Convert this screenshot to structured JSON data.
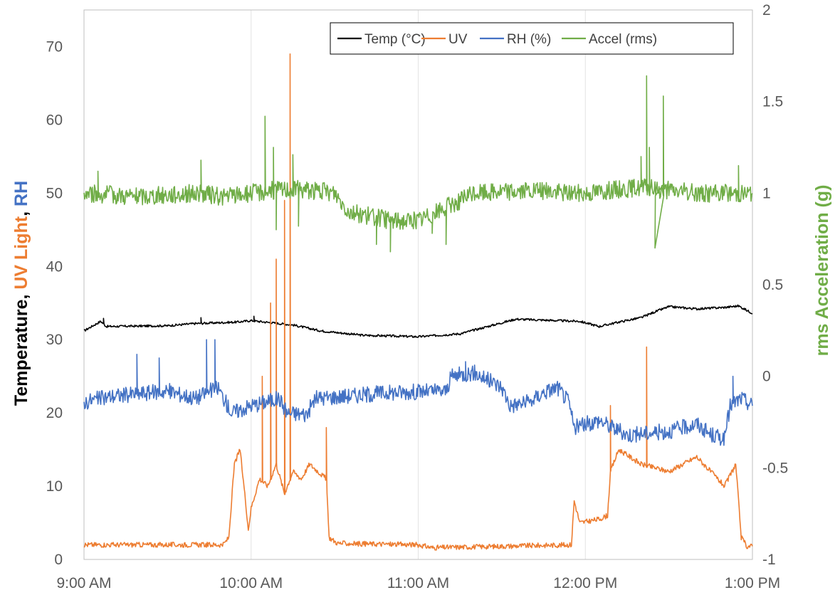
{
  "chart_data": {
    "type": "line",
    "title": "",
    "xlabel": "",
    "xlim": [
      "9:00 AM",
      "1:00 PM"
    ],
    "x_ticks": [
      "9:00 AM",
      "10:00 AM",
      "11:00 AM",
      "12:00 PM",
      "1:00 PM"
    ],
    "ylabel_left_parts": [
      {
        "text": "Temperature",
        "color": "#000000"
      },
      {
        "text": ", ",
        "color": "#000000"
      },
      {
        "text": "UV Light",
        "color": "#ED7D31"
      },
      {
        "text": ", ",
        "color": "#000000"
      },
      {
        "text": "RH",
        "color": "#4472C4"
      }
    ],
    "ylim_left": [
      0,
      75
    ],
    "y_ticks_left": [
      "0",
      "10",
      "20",
      "30",
      "40",
      "50",
      "60",
      "70"
    ],
    "ylabel_right": "rms Acceleration (g)",
    "ylabel_right_color": "#70AD47",
    "ylim_right": [
      -1,
      2
    ],
    "y_ticks_right": [
      "-1",
      "-0.5",
      "0",
      "0.5",
      "1",
      "1.5",
      "2"
    ],
    "grid": "vertical",
    "legend_position": "top-right",
    "series": [
      {
        "name": "Temp (°C)",
        "color": "#000000",
        "axis": "left",
        "noise": 0.15,
        "points": [
          [
            "9:00",
            31.2
          ],
          [
            "9:06",
            32.5
          ],
          [
            "9:08",
            31.8
          ],
          [
            "9:30",
            31.9
          ],
          [
            "9:40",
            32.2
          ],
          [
            "9:55",
            32.4
          ],
          [
            "10:00",
            32.6
          ],
          [
            "10:05",
            32.4
          ],
          [
            "10:15",
            32.0
          ],
          [
            "10:25",
            31.2
          ],
          [
            "10:40",
            30.6
          ],
          [
            "11:00",
            30.4
          ],
          [
            "11:15",
            30.8
          ],
          [
            "11:25",
            31.8
          ],
          [
            "11:35",
            32.8
          ],
          [
            "11:50",
            32.6
          ],
          [
            "11:58",
            32.5
          ],
          [
            "12:05",
            31.8
          ],
          [
            "12:12",
            32.4
          ],
          [
            "12:20",
            33.0
          ],
          [
            "12:25",
            33.8
          ],
          [
            "12:30",
            34.5
          ],
          [
            "12:40",
            34.2
          ],
          [
            "12:50",
            34.4
          ],
          [
            "12:55",
            34.6
          ],
          [
            "13:00",
            33.6
          ]
        ],
        "spikes": [
          [
            "9:07",
            32.9
          ],
          [
            "9:42",
            33.0
          ],
          [
            "10:01",
            33.2
          ]
        ]
      },
      {
        "name": "UV",
        "color": "#ED7D31",
        "axis": "left",
        "noise": 0.35,
        "points": [
          [
            "9:00",
            2.0
          ],
          [
            "9:50",
            2.0
          ],
          [
            "9:52",
            3.0
          ],
          [
            "9:54",
            13.0
          ],
          [
            "9:56",
            15.0
          ],
          [
            "9:58",
            8.0
          ],
          [
            "9:59",
            4.0
          ],
          [
            "10:00",
            7.0
          ],
          [
            "10:03",
            11.0
          ],
          [
            "10:06",
            10.0
          ],
          [
            "10:09",
            13.0
          ],
          [
            "10:12",
            9.0
          ],
          [
            "10:15",
            12.0
          ],
          [
            "10:18",
            11.0
          ],
          [
            "10:21",
            13.0
          ],
          [
            "10:24",
            12.0
          ],
          [
            "10:27",
            11.0
          ],
          [
            "10:28",
            3.0
          ],
          [
            "10:31",
            2.2
          ],
          [
            "11:00",
            2.0
          ],
          [
            "11:05",
            1.6
          ],
          [
            "11:30",
            1.8
          ],
          [
            "11:55",
            2.0
          ],
          [
            "11:56",
            8.0
          ],
          [
            "11:58",
            5.0
          ],
          [
            "12:05",
            5.5
          ],
          [
            "12:08",
            6.0
          ],
          [
            "12:09",
            12.0
          ],
          [
            "12:12",
            15.0
          ],
          [
            "12:20",
            13.0
          ],
          [
            "12:30",
            12.0
          ],
          [
            "12:40",
            14.0
          ],
          [
            "12:45",
            12.0
          ],
          [
            "12:50",
            10.0
          ],
          [
            "12:54",
            13.0
          ],
          [
            "12:56",
            3.0
          ],
          [
            "12:58",
            1.8
          ],
          [
            "13:00",
            1.8
          ]
        ],
        "spikes": [
          [
            "10:04",
            25.0
          ],
          [
            "10:07",
            35.0
          ],
          [
            "10:09",
            41.0
          ],
          [
            "10:12",
            49.0
          ],
          [
            "10:14",
            69.0
          ],
          [
            "10:27",
            18.0
          ],
          [
            "12:09",
            21.0
          ],
          [
            "12:22",
            29.0
          ]
        ]
      },
      {
        "name": "RH (%)",
        "color": "#4472C4",
        "axis": "left",
        "noise": 1.1,
        "points": [
          [
            "9:00",
            21.5
          ],
          [
            "9:10",
            22.3
          ],
          [
            "9:30",
            23.0
          ],
          [
            "9:40",
            22.0
          ],
          [
            "9:48",
            23.5
          ],
          [
            "9:53",
            20.0
          ],
          [
            "10:00",
            21.0
          ],
          [
            "10:10",
            22.0
          ],
          [
            "10:13",
            20.0
          ],
          [
            "10:20",
            19.8
          ],
          [
            "10:23",
            22.0
          ],
          [
            "10:30",
            22.2
          ],
          [
            "10:50",
            22.8
          ],
          [
            "11:10",
            23.0
          ],
          [
            "11:12",
            25.0
          ],
          [
            "11:20",
            25.5
          ],
          [
            "11:30",
            23.5
          ],
          [
            "11:33",
            21.0
          ],
          [
            "11:40",
            21.5
          ],
          [
            "11:45",
            22.8
          ],
          [
            "11:50",
            23.5
          ],
          [
            "11:54",
            21.5
          ],
          [
            "11:56",
            18.0
          ],
          [
            "12:05",
            19.0
          ],
          [
            "12:15",
            17.0
          ],
          [
            "12:30",
            17.5
          ],
          [
            "12:40",
            18.5
          ],
          [
            "12:45",
            17.0
          ],
          [
            "12:50",
            16.5
          ],
          [
            "12:52",
            21.0
          ],
          [
            "12:56",
            22.0
          ],
          [
            "13:00",
            21.0
          ]
        ],
        "spikes": [
          [
            "9:19",
            28.0
          ],
          [
            "9:27",
            27.5
          ],
          [
            "9:44",
            30.0
          ],
          [
            "9:47",
            30.0
          ],
          [
            "11:17",
            27.0
          ],
          [
            "12:53",
            25.0
          ]
        ]
      },
      {
        "name": "Accel (rms)",
        "color": "#70AD47",
        "axis": "right",
        "noise": 0.05,
        "points": [
          [
            "9:00",
            1.0
          ],
          [
            "9:20",
            0.98
          ],
          [
            "9:40",
            1.0
          ],
          [
            "9:50",
            0.98
          ],
          [
            "10:00",
            1.0
          ],
          [
            "10:10",
            1.02
          ],
          [
            "10:20",
            1.02
          ],
          [
            "10:30",
            1.0
          ],
          [
            "10:35",
            0.9
          ],
          [
            "10:50",
            0.85
          ],
          [
            "11:00",
            0.85
          ],
          [
            "11:10",
            0.92
          ],
          [
            "11:20",
            1.0
          ],
          [
            "11:30",
            1.01
          ],
          [
            "11:45",
            1.01
          ],
          [
            "12:00",
            1.0
          ],
          [
            "12:10",
            1.02
          ],
          [
            "12:20",
            1.03
          ],
          [
            "12:40",
            1.0
          ],
          [
            "13:00",
            1.0
          ]
        ],
        "spikes": [
          [
            "9:05",
            1.12
          ],
          [
            "9:42",
            1.18
          ],
          [
            "10:05",
            1.42
          ],
          [
            "10:08",
            1.25
          ],
          [
            "10:09",
            0.8
          ],
          [
            "10:15",
            1.21
          ],
          [
            "10:17",
            0.82
          ],
          [
            "10:45",
            0.72
          ],
          [
            "10:50",
            0.68
          ],
          [
            "11:05",
            0.78
          ],
          [
            "11:10",
            0.72
          ],
          [
            "12:20",
            1.2
          ],
          [
            "12:22",
            1.64
          ],
          [
            "12:23",
            1.25
          ],
          [
            "12:28",
            1.53
          ],
          [
            "12:25",
            0.7
          ],
          [
            "12:55",
            1.15
          ]
        ]
      }
    ]
  }
}
